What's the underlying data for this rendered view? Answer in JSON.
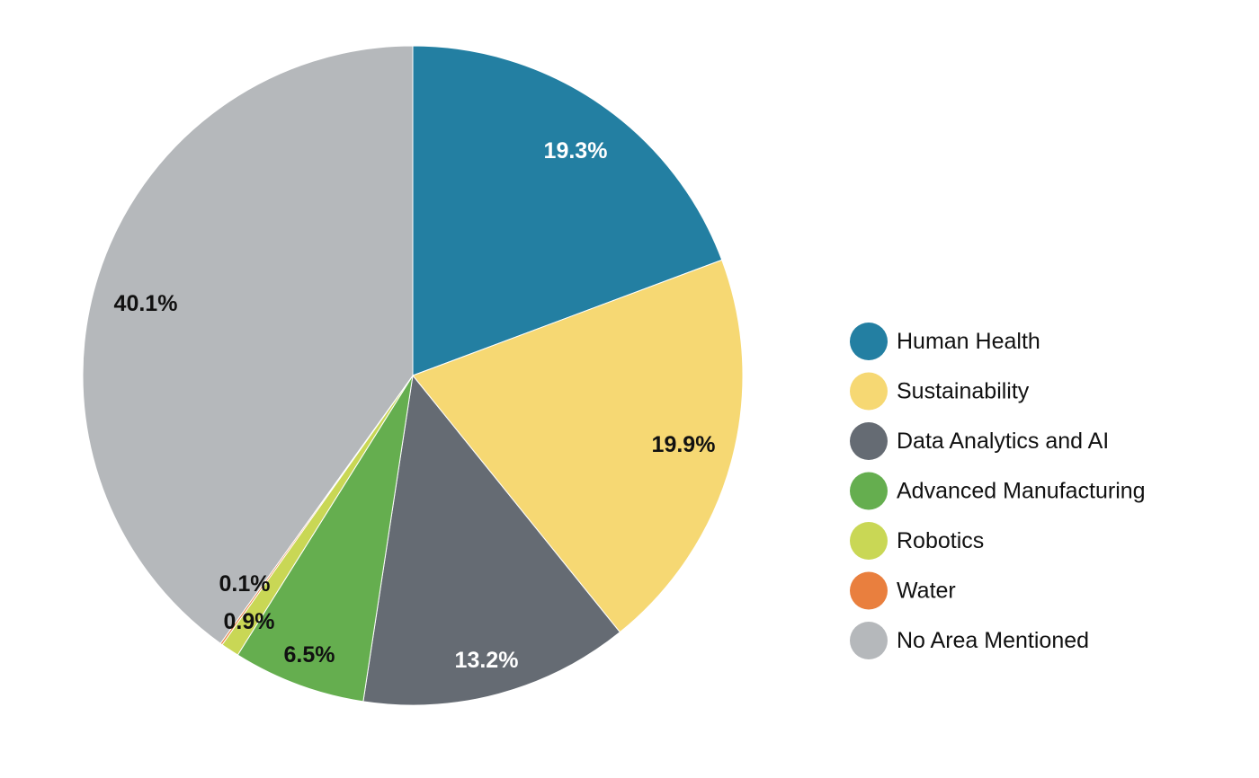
{
  "chart_data": {
    "type": "pie",
    "title": "",
    "legend_position": "right",
    "start_angle_deg": 0,
    "direction": "clockwise",
    "slices": [
      {
        "name": "Human Health",
        "value": 19.3,
        "label": "19.3%",
        "color": "#237fa2",
        "label_color": "#ffffff"
      },
      {
        "name": "Sustainability",
        "value": 19.9,
        "label": "19.9%",
        "color": "#f6d873",
        "label_color": "#111111"
      },
      {
        "name": "Data Analytics and AI",
        "value": 13.2,
        "label": "13.2%",
        "color": "#656b73",
        "label_color": "#ffffff"
      },
      {
        "name": "Advanced Manufacturing",
        "value": 6.5,
        "label": "6.5%",
        "color": "#65ae4f",
        "label_color": "#111111"
      },
      {
        "name": "Robotics",
        "value": 0.9,
        "label": "0.9%",
        "color": "#c9d755",
        "label_color": "#111111"
      },
      {
        "name": "Water",
        "value": 0.1,
        "label": "0.1%",
        "color": "#e97f3e",
        "label_color": "#111111"
      },
      {
        "name": "No Area Mentioned",
        "value": 40.1,
        "label": "40.1%",
        "color": "#b5b8bb",
        "label_color": "#111111"
      }
    ]
  }
}
